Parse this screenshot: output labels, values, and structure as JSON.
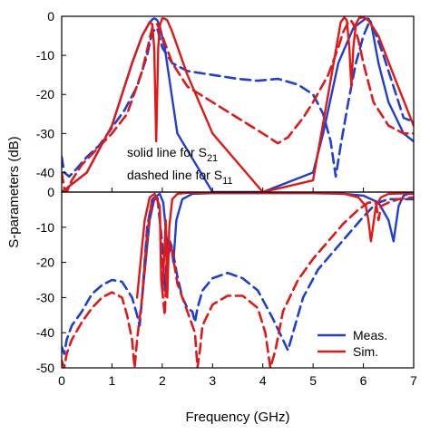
{
  "chart_data": [
    {
      "type": "line",
      "panel": "top",
      "xlabel": "",
      "ylabel": "S-parameters (dB)",
      "xlim": [
        0,
        7
      ],
      "ylim": [
        -45,
        0
      ],
      "yticks": [
        0,
        -10,
        -20,
        -30,
        -40
      ],
      "annotations": [
        {
          "text": "solid line for S",
          "sub": "21"
        },
        {
          "text": "dashed line for S",
          "sub": "11"
        }
      ],
      "series": [
        {
          "name": "Meas.",
          "param": "S21",
          "style": "solid",
          "color": "#1f3fd0",
          "x": [
            0,
            0.5,
            1.0,
            1.4,
            1.6,
            1.75,
            1.82,
            1.86,
            1.9,
            1.95,
            2.05,
            2.3,
            3,
            4,
            5,
            5.2,
            5.5,
            5.8,
            6.0,
            6.05,
            6.1,
            6.15,
            6.2,
            6.3,
            6.5,
            6.8,
            7.0
          ],
          "y": [
            -45,
            -40,
            -28,
            -12,
            -5,
            -1.5,
            -0.6,
            -0.6,
            -1.0,
            -2.5,
            -8,
            -30,
            -45,
            -45,
            -40,
            -30,
            -12,
            -3,
            -1.0,
            -0.6,
            -0.6,
            -1.5,
            -5,
            -12,
            -22,
            -30,
            -32
          ]
        },
        {
          "name": "Meas.",
          "param": "S11",
          "style": "dashed",
          "color": "#1f3fd0",
          "x": [
            0,
            0.05,
            0.15,
            0.3,
            0.5,
            0.75,
            1.0,
            1.25,
            1.5,
            1.7,
            1.8,
            1.9,
            2.0,
            2.2,
            2.5,
            3.0,
            3.5,
            3.9,
            4.3,
            4.7,
            5.0,
            5.2,
            5.35,
            5.45,
            5.55,
            5.7,
            5.85,
            6.0,
            6.1,
            6.2,
            6.4,
            6.6,
            6.8,
            7.0
          ],
          "y": [
            -36,
            -40,
            -41,
            -39,
            -36,
            -33,
            -28.5,
            -24,
            -18,
            -10,
            -4,
            -3,
            -8,
            -12,
            -14,
            -15,
            -16,
            -16.5,
            -16,
            -17.5,
            -20,
            -25,
            -32,
            -41,
            -33,
            -22,
            -12,
            -5,
            -2,
            -3,
            -10,
            -18,
            -26,
            -27
          ]
        },
        {
          "name": "Sim.",
          "param": "S21",
          "style": "solid",
          "color": "#e01818",
          "x": [
            0,
            0.5,
            1.0,
            1.4,
            1.6,
            1.75,
            1.8,
            1.84,
            1.88,
            1.92,
            1.96,
            2.0,
            2.05,
            2.1,
            2.2,
            2.5,
            3,
            4,
            5,
            5.3,
            5.55,
            5.62,
            5.67,
            5.72,
            5.76,
            5.8,
            5.85,
            5.92,
            6.0,
            6.1,
            6.3,
            6.6,
            7.0
          ],
          "y": [
            -45,
            -40,
            -28,
            -12,
            -5,
            -1.5,
            -2,
            -8,
            -32,
            -8,
            -2,
            -0.5,
            -0.6,
            -1,
            -4,
            -15,
            -30,
            -45,
            -42,
            -20,
            -1.5,
            -0.3,
            -1,
            -8,
            -18,
            -8,
            -2,
            -0.4,
            -0.3,
            -1,
            -5,
            -15,
            -28
          ]
        },
        {
          "name": "Sim.",
          "param": "S11",
          "style": "dashed",
          "color": "#e01818",
          "x": [
            0,
            0.05,
            0.1,
            0.2,
            0.4,
            0.7,
            1.0,
            1.3,
            1.6,
            1.8,
            1.9,
            2.0,
            2.2,
            2.5,
            3.0,
            3.5,
            4.0,
            4.3,
            4.5,
            4.8,
            5.0,
            5.3,
            5.5,
            5.6,
            5.7,
            5.75,
            5.8,
            5.9,
            6.0,
            6.2,
            6.5,
            6.8,
            7.0
          ],
          "y": [
            -40,
            -44,
            -45,
            -42,
            -38,
            -34,
            -30,
            -25,
            -14,
            -3,
            -2,
            -5,
            -12,
            -18,
            -22,
            -26,
            -30,
            -32.5,
            -31,
            -26,
            -22,
            -15,
            -8,
            -4,
            -1.5,
            -1,
            -2,
            -6,
            -12,
            -22,
            -28,
            -30,
            -30
          ]
        }
      ]
    },
    {
      "type": "line",
      "panel": "bottom",
      "xlabel": "Frequency (GHz)",
      "ylabel": "S-parameters (dB)",
      "xlim": [
        0,
        7
      ],
      "ylim": [
        -50,
        0
      ],
      "xticks": [
        0,
        1,
        2,
        3,
        4,
        5,
        6,
        7
      ],
      "yticks": [
        0,
        -10,
        -20,
        -30,
        -40,
        -50
      ],
      "legend": {
        "position": "bottom-right",
        "entries": [
          "Meas.",
          "Sim."
        ]
      },
      "series": [
        {
          "name": "Meas.",
          "param": "S21",
          "style": "solid",
          "color": "#1f3fd0",
          "x": [
            1.6,
            1.75,
            1.85,
            1.95,
            2.02,
            2.08,
            2.12,
            2.18,
            2.22,
            2.28,
            2.4,
            2.6,
            3.0,
            4.0,
            5.0,
            5.6,
            6.0,
            6.3,
            6.5,
            6.6,
            6.65,
            6.7,
            6.8,
            6.9,
            7.0
          ],
          "y": [
            -30,
            -8,
            -1.5,
            -0.5,
            -3,
            -12,
            -18,
            -15,
            -20,
            -8,
            -2,
            -0.5,
            -0.3,
            -0.3,
            -0.3,
            -0.5,
            -1,
            -3,
            -8,
            -14,
            -9,
            -4,
            -1,
            -0.5,
            -0.5
          ]
        },
        {
          "name": "Meas.",
          "param": "S11",
          "style": "dashed",
          "color": "#1f3fd0",
          "x": [
            0.0,
            0.05,
            0.1,
            0.2,
            0.4,
            0.6,
            0.8,
            1.0,
            1.2,
            1.4,
            1.5,
            1.55,
            1.6,
            1.7,
            1.8,
            1.9,
            2.0,
            2.05,
            2.1,
            2.15,
            2.2,
            2.3,
            2.4,
            2.5,
            2.6,
            2.65,
            2.7,
            2.8,
            3.0,
            3.3,
            3.6,
            3.9,
            4.2,
            4.4,
            4.5,
            4.6,
            4.8,
            5.1,
            5.4,
            5.7,
            6.0,
            6.2,
            6.3,
            6.5,
            6.7,
            7.0
          ],
          "y": [
            -44,
            -46,
            -42,
            -38,
            -34,
            -29,
            -26.5,
            -25,
            -25.5,
            -30,
            -35,
            -38,
            -30,
            -10,
            -2,
            -1,
            -15,
            -28,
            -16,
            -14,
            -16,
            -24,
            -30,
            -33,
            -34,
            -37,
            -33,
            -28,
            -24.5,
            -23,
            -24.5,
            -28,
            -36,
            -42,
            -45,
            -40,
            -30,
            -22,
            -17,
            -12,
            -7,
            -4,
            -3,
            -2,
            -2,
            -2
          ]
        },
        {
          "name": "Sim.",
          "param": "S21",
          "style": "solid",
          "color": "#e01818",
          "x": [
            1.5,
            1.65,
            1.75,
            1.85,
            1.95,
            1.98,
            2.0,
            2.04,
            2.07,
            2.1,
            2.14,
            2.2,
            2.3,
            2.5,
            3.0,
            4.0,
            5.0,
            5.6,
            5.9,
            6.05,
            6.1,
            6.15,
            6.2,
            6.25,
            6.35,
            6.5,
            7.0
          ],
          "y": [
            -30,
            -8,
            -1.5,
            -0.5,
            -4,
            -25,
            -28,
            -18,
            -8,
            -30,
            -10,
            -2,
            -0.5,
            -0.2,
            -0.2,
            -0.2,
            -0.2,
            -0.4,
            -1.5,
            -4,
            -8,
            -14,
            -9,
            -4,
            -1.5,
            -0.5,
            -0.3
          ]
        },
        {
          "name": "Sim.",
          "param": "S11",
          "style": "dashed",
          "color": "#e01818",
          "x": [
            0.0,
            0.05,
            0.1,
            0.2,
            0.4,
            0.6,
            0.8,
            1.0,
            1.2,
            1.3,
            1.4,
            1.45,
            1.5,
            1.6,
            1.7,
            1.8,
            1.9,
            1.95,
            2.0,
            2.05,
            2.1,
            2.15,
            2.2,
            2.3,
            2.5,
            2.65,
            2.7,
            2.75,
            2.8,
            3.0,
            3.3,
            3.6,
            3.9,
            4.05,
            4.15,
            4.25,
            4.4,
            4.7,
            5.0,
            5.3,
            5.6,
            5.9,
            6.1,
            6.25,
            6.3,
            6.35,
            6.5,
            6.7,
            7.0
          ],
          "y": [
            -48,
            -50,
            -46,
            -42,
            -37,
            -33,
            -30,
            -28.5,
            -30,
            -35,
            -42,
            -50,
            -42,
            -30,
            -12,
            -2,
            -2,
            -5,
            -28,
            -35,
            -18,
            -14,
            -17,
            -26,
            -34,
            -40,
            -50,
            -45,
            -38,
            -32,
            -29.5,
            -29.5,
            -33,
            -40,
            -50,
            -45,
            -34,
            -25,
            -19,
            -14,
            -9,
            -5,
            -3,
            -3,
            -8,
            -4,
            -3,
            -2,
            -1.5
          ]
        }
      ]
    }
  ]
}
